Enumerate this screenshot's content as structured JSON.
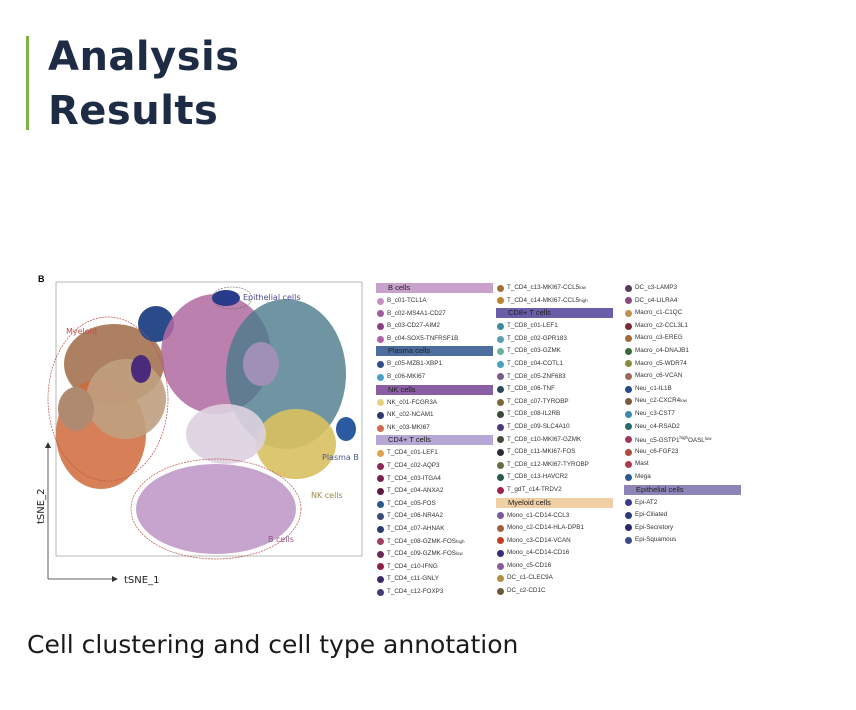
{
  "header": {
    "title_line1": "Analysis",
    "title_line2": "Results",
    "accent_color": "#7cb342"
  },
  "figure": {
    "panel_label": "B",
    "axes": {
      "x": "tSNE_1",
      "y": "tSNE_2"
    },
    "region_labels": {
      "myeloid": "Myeloid",
      "epithelial": "Epithelial cells",
      "plasma": "Plasma B",
      "nk": "NK cells",
      "bcells": "B cells"
    },
    "legend": [
      {
        "groups": [
          {
            "header": "B cells",
            "color": "#c8a2cc",
            "items": [
              [
                "1",
                "B_c01-TCL1A",
                "",
                "#c78fc0"
              ],
              [
                "2",
                "B_c02-MS4A1-CD27",
                "",
                "#9d5e9b"
              ],
              [
                "3",
                "B_c03-CD27-AIM2",
                "",
                "#8d3f7d"
              ],
              [
                "4",
                "B_c04-SOX5-TNFRSF1B",
                "",
                "#b060a8"
              ]
            ]
          },
          {
            "header": "Plasma cells",
            "color": "#4c6d9e",
            "items": [
              [
                "5",
                "B_c05-MZB1-XBP1",
                "",
                "#2e4f8a"
              ],
              [
                "6",
                "B_c06-MKI67",
                "",
                "#4aa0c8"
              ]
            ]
          },
          {
            "header": "NK cells",
            "color": "#8a5ea2",
            "items": [
              [
                "7",
                "NK_c01-FCGR3A",
                "",
                "#e6d27a"
              ],
              [
                "8",
                "NK_c02-NCAM1",
                "",
                "#2a3a70"
              ],
              [
                "9",
                "NK_c03-MKI67",
                "",
                "#d06a50"
              ]
            ]
          },
          {
            "header": "CD4+ T cells",
            "color": "#b5a8d6",
            "items": [
              [
                "10",
                "T_CD4_c01-LEF1",
                "",
                "#e0a050"
              ],
              [
                "11",
                "T_CD4_c02-AQP3",
                "",
                "#8a2a5a"
              ],
              [
                "12",
                "T_CD4_c03-ITGA4",
                "",
                "#7a2050"
              ],
              [
                "13",
                "T_CD4_c04-ANXA2",
                "",
                "#5a1a40"
              ],
              [
                "14",
                "T_CD4_c05-FOS",
                "",
                "#2a5a8a"
              ],
              [
                "15",
                "T_CD4_c06-NR4A2",
                "",
                "#3a4a7a"
              ],
              [
                "16",
                "T_CD4_c07-AHNAK",
                "",
                "#2a3a6a"
              ],
              [
                "17",
                "T_CD4_c08-GZMK-FOS",
                "high",
                "#a04060"
              ],
              [
                "18",
                "T_CD4_c09-GZMK-FOS",
                "low",
                "#6a2a5a"
              ],
              [
                "19",
                "T_CD4_c10-IFNG",
                "",
                "#902040"
              ],
              [
                "20",
                "T_CD4_c11-GNLY",
                "",
                "#3a2a6a"
              ],
              [
                "21",
                "T_CD4_c12-FOXP3",
                "",
                "#4a3a7a"
              ]
            ]
          }
        ]
      },
      {
        "groups": [
          {
            "header": "",
            "color": "",
            "items": [
              [
                "22",
                "T_CD4_c13-MKI67-CCL5",
                "low",
                "#a07030"
              ],
              [
                "23",
                "T_CD4_c14-MKI67-CCL5",
                "high",
                "#c08030"
              ]
            ]
          },
          {
            "header": "CD8+ T cells",
            "color": "#6a5ea8",
            "items": [
              [
                "24",
                "T_CD8_c01-LEF1",
                "",
                "#3a8aa0"
              ],
              [
                "25",
                "T_CD8_c02-GPR183",
                "",
                "#5aa0b0"
              ],
              [
                "26",
                "T_CD8_c03-GZMK",
                "",
                "#6ab0a0"
              ],
              [
                "27",
                "T_CD8_c04-COTL1",
                "",
                "#4aa0c0"
              ],
              [
                "28",
                "T_CD8_c05-ZNF683",
                "",
                "#7a5a8a"
              ],
              [
                "29",
                "T_CD8_c06-TNF",
                "",
                "#2a4a5a"
              ],
              [
                "30",
                "T_CD8_c07-TYROBP",
                "",
                "#7a6a3a"
              ],
              [
                "31",
                "T_CD8_c08-IL2RB",
                "",
                "#3a4a3a"
              ],
              [
                "32",
                "T_CD8_c09-SLC4A10",
                "",
                "#4a3a7a"
              ],
              [
                "33",
                "T_CD8_c10-MKI67-GZMK",
                "",
                "#4a4a3a"
              ],
              [
                "34",
                "T_CD8_c11-MKI67-FOS",
                "",
                "#2a2a3a"
              ],
              [
                "35",
                "T_CD8_c12-MKI67-TYROBP",
                "",
                "#6a6a4a"
              ],
              [
                "36",
                "T_CD8_c13-HAVCR2",
                "",
                "#2a5a4a"
              ],
              [
                "37",
                "T_gdT_c14-TRDV2",
                "",
                "#a02050"
              ]
            ]
          },
          {
            "header": "Myeloid cells",
            "color": "#f0cfa4",
            "items": [
              [
                "38",
                "Mono_c1-CD14-CCL3",
                "",
                "#7a5a9a"
              ],
              [
                "39",
                "Mono_c2-CD14-HLA-DPB1",
                "",
                "#a06040"
              ],
              [
                "40",
                "Mono_c3-CD14-VCAN",
                "",
                "#c04020"
              ],
              [
                "41",
                "Mono_c4-CD14-CD16",
                "",
                "#3a2a7a"
              ],
              [
                "42",
                "Mono_c5-CD16",
                "",
                "#8a5a9a"
              ],
              [
                "43",
                "DC_c1-CLEC9A",
                "",
                "#b09040"
              ],
              [
                "44",
                "DC_c2-CD1C",
                "",
                "#6a5a3a"
              ]
            ]
          }
        ]
      },
      {
        "groups": [
          {
            "header": "",
            "color": "",
            "items": [
              [
                "45",
                "DC_c3-LAMP3",
                "",
                "#5a3a5a"
              ],
              [
                "46",
                "DC_c4-LILRA4",
                "",
                "#8a4a7a"
              ],
              [
                "47",
                "Macro_c1-C1QC",
                "",
                "#c09050"
              ],
              [
                "48",
                "Macro_c2-CCL3L1",
                "",
                "#7a2a3a"
              ],
              [
                "49",
                "Macro_c3-EREG",
                "",
                "#a06a3a"
              ],
              [
                "50",
                "Macro_c4-DNAJB1",
                "",
                "#3a6a3a"
              ],
              [
                "51",
                "Macro_c5-WDR74",
                "",
                "#8a8a3a"
              ],
              [
                "52",
                "Macro_c6-VCAN",
                "",
                "#9a6a5a"
              ],
              [
                "53",
                "Neu_c1-IL1B",
                "",
                "#2a4a8a"
              ],
              [
                "54",
                "Neu_c2-CXCR4",
                "low",
                "#7a5a3a"
              ],
              [
                "55",
                "Neu_c3-CST7",
                "",
                "#3a8ab0"
              ],
              [
                "56",
                "Neu_c4-RSAD2",
                "",
                "#2a6a6a"
              ],
              [
                "57",
                "Neu_c5-GSTP1<sup>high</sup>OASL",
                "low",
                "#a03a5a"
              ],
              [
                "58",
                "Neu_c6-FGF23",
                "",
                "#b04a3a"
              ],
              [
                "59",
                "Mast",
                "",
                "#b03a4a"
              ],
              [
                "60",
                "Mega",
                "",
                "#2a5a8a"
              ]
            ]
          },
          {
            "header": "Epithelial cells",
            "color": "#8d85b8",
            "items": [
              [
                "61",
                "Epi-AT2",
                "",
                "#3a3a8a"
              ],
              [
                "62",
                "Epi-Ciliated",
                "",
                "#2a3a7a"
              ],
              [
                "63",
                "Epi-Secretory",
                "",
                "#2a2a6a"
              ],
              [
                "64",
                "Epi-Squamous",
                "",
                "#3a4a8a"
              ]
            ]
          }
        ]
      }
    ]
  },
  "caption": "Cell clustering and cell type annotation"
}
